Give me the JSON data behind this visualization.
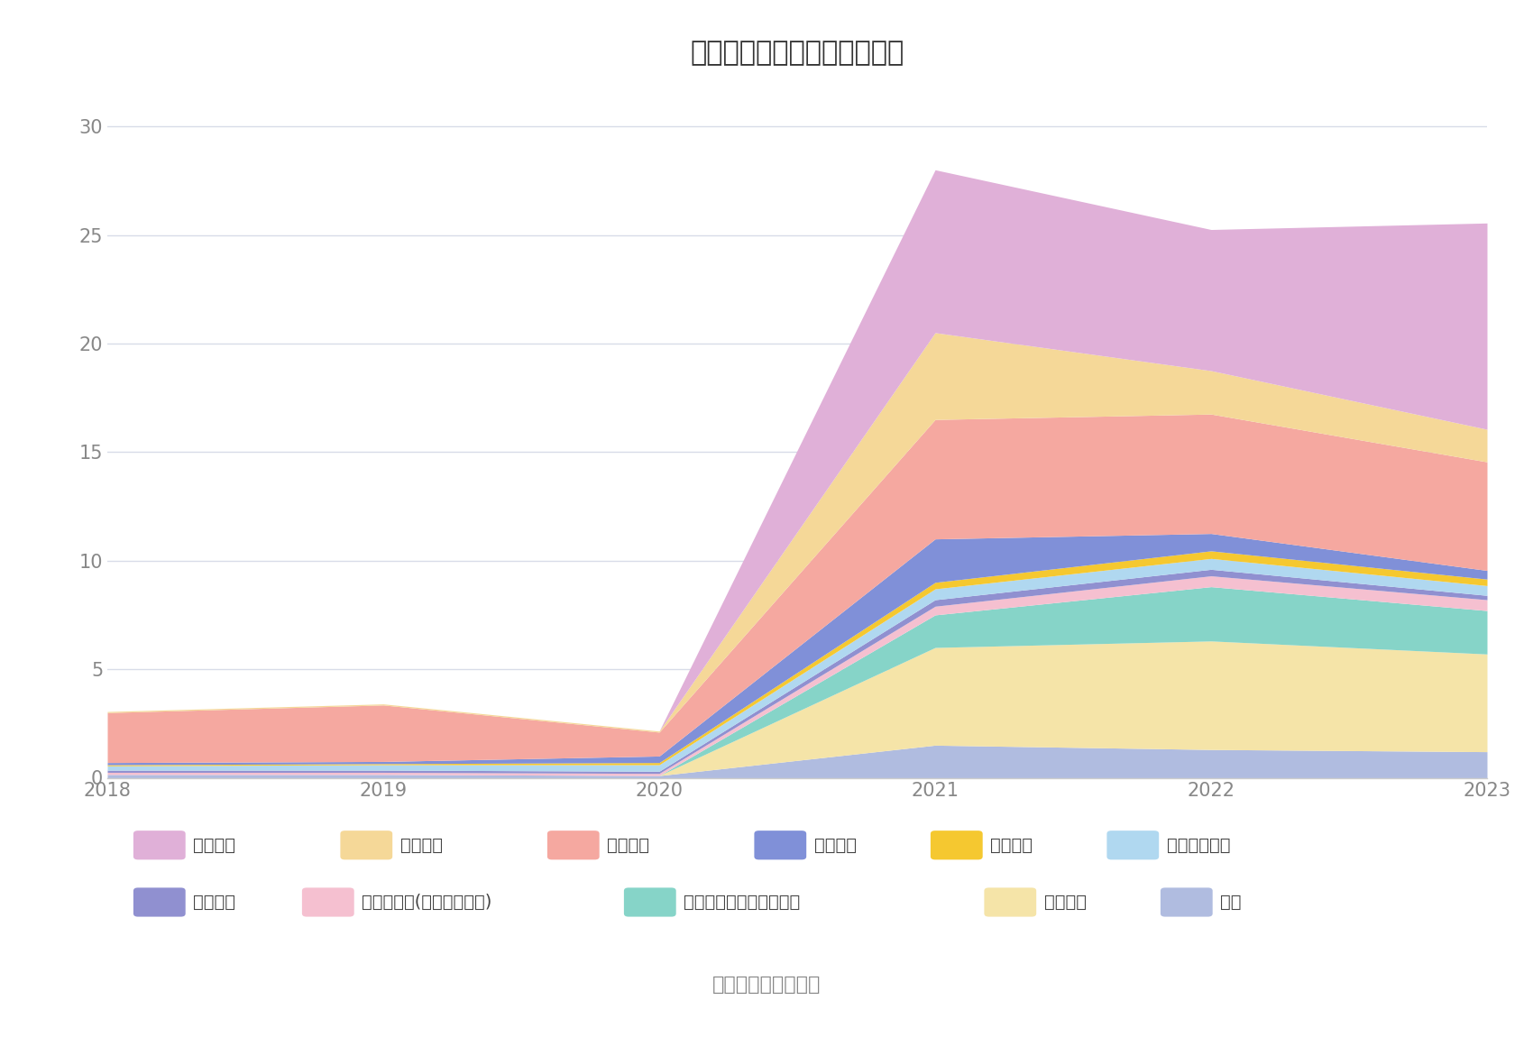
{
  "title": "历年主要负债堆积图（亿元）",
  "years": [
    2018,
    2019,
    2020,
    2021,
    2022,
    2023
  ],
  "series": [
    {
      "name": "其它",
      "color": "#b0bce0",
      "values": [
        0.15,
        0.15,
        0.1,
        1.5,
        1.3,
        1.2
      ]
    },
    {
      "name": "长期借款",
      "color": "#f5e4a8",
      "values": [
        0.0,
        0.0,
        0.0,
        4.5,
        5.0,
        4.5
      ]
    },
    {
      "name": "一年内到期的非流动负债",
      "color": "#86d4c8",
      "values": [
        0.0,
        0.0,
        0.0,
        1.5,
        2.5,
        2.0
      ]
    },
    {
      "name": "其他应付款(含利息和股利)",
      "color": "#f5c0d0",
      "values": [
        0.1,
        0.1,
        0.1,
        0.4,
        0.5,
        0.5
      ]
    },
    {
      "name": "应交税费",
      "color": "#9090d0",
      "values": [
        0.1,
        0.1,
        0.1,
        0.3,
        0.3,
        0.2
      ]
    },
    {
      "name": "应付职工薪酬",
      "color": "#b0d8f0",
      "values": [
        0.2,
        0.25,
        0.3,
        0.5,
        0.5,
        0.45
      ]
    },
    {
      "name": "合同负债",
      "color": "#f5c830",
      "values": [
        0.05,
        0.05,
        0.1,
        0.3,
        0.35,
        0.3
      ]
    },
    {
      "name": "预收款项",
      "color": "#8090d8",
      "values": [
        0.1,
        0.1,
        0.3,
        2.0,
        0.8,
        0.4
      ]
    },
    {
      "name": "应付账款",
      "color": "#f5a8a0",
      "values": [
        2.3,
        2.6,
        1.1,
        5.5,
        5.5,
        5.0
      ]
    },
    {
      "name": "应付票据",
      "color": "#f5d898",
      "values": [
        0.05,
        0.05,
        0.05,
        4.0,
        2.0,
        1.5
      ]
    },
    {
      "name": "短期借款",
      "color": "#e0b0d8",
      "values": [
        0.0,
        0.0,
        0.0,
        7.5,
        6.5,
        9.5
      ]
    }
  ],
  "ylim": [
    0,
    32
  ],
  "yticks": [
    0,
    5,
    10,
    15,
    20,
    25,
    30
  ],
  "background_color": "#ffffff",
  "grid_color": "#d8dce8",
  "source_text": "数据来源：恒生聚源",
  "title_fontsize": 22,
  "tick_fontsize": 15,
  "legend_fontsize": 14
}
